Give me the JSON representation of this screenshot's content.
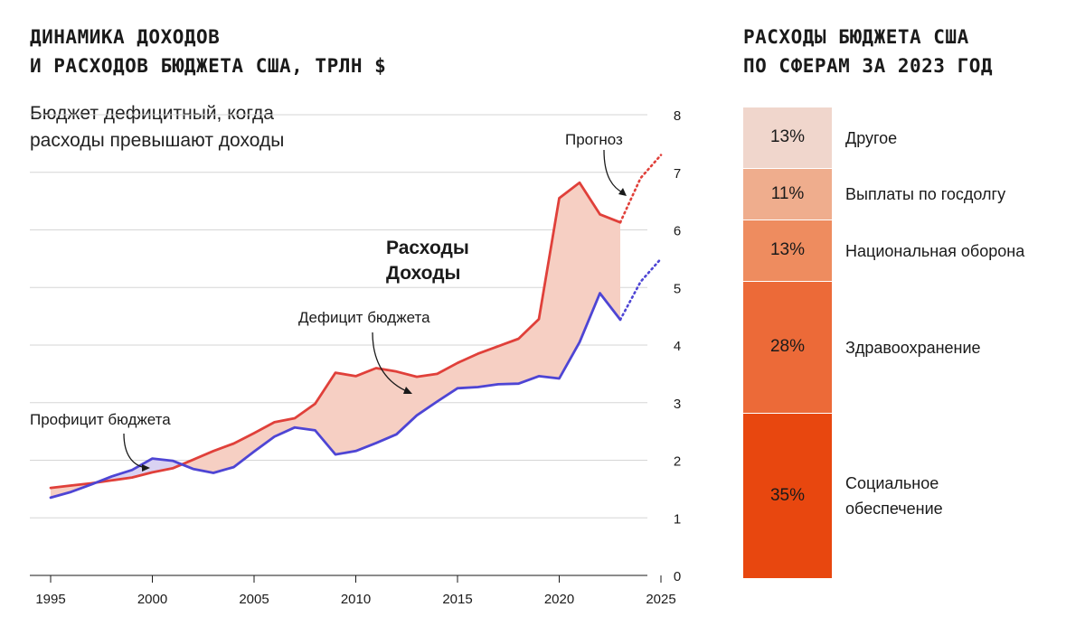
{
  "left_chart": {
    "title_line1": "ДИНАМИКА ДОХОДОВ",
    "title_line2": "И РАСХОДОВ БЮДЖЕТА США, ТРЛН $",
    "subtitle_line1": "Бюджет дефицитный, когда",
    "subtitle_line2": "расходы превышают доходы",
    "legend_expenses": "Расходы",
    "legend_revenues": "Доходы",
    "annotation_forecast": "Прогноз",
    "annotation_deficit": "Дефицит бюджета",
    "annotation_surplus": "Профицит бюджета",
    "colors": {
      "expenses": "#e0403a",
      "revenues": "#4e45d4",
      "deficit_fill": "#f6cfc3",
      "surplus_fill": "#d9d2f2",
      "grid": "#d6d6d6"
    }
  },
  "right_chart": {
    "title_line1": "РАСХОДЫ БЮДЖЕТА США",
    "title_line2": "ПО СФЕРАМ ЗА 2023 ГОД",
    "segments": [
      {
        "label": "Другое",
        "percent": "13%",
        "value": 13,
        "color": "#f0d6cc"
      },
      {
        "label": "Выплаты по госдолгу",
        "percent": "11%",
        "value": 11,
        "color": "#efad8d"
      },
      {
        "label": "Национальная оборона",
        "percent": "13%",
        "value": 13,
        "color": "#ee8c5f"
      },
      {
        "label": "Здравоохранение",
        "percent": "28%",
        "value": 28,
        "color": "#ec6a38"
      },
      {
        "label_line1": "Социальное",
        "label_line2": "обеспечение",
        "percent": "35%",
        "value": 35,
        "color": "#e8470f"
      }
    ]
  },
  "chart_data": {
    "type": "line",
    "title": "Динамика доходов и расходов бюджета США, трлн $",
    "xlabel": "",
    "ylabel": "трлн $",
    "xlim": [
      1995,
      2025
    ],
    "ylim": [
      0,
      8
    ],
    "x_ticks": [
      "1995",
      "2000",
      "2005",
      "2010",
      "2015",
      "2020",
      "2025"
    ],
    "y_ticks": [
      "0",
      "1",
      "2",
      "3",
      "4",
      "5",
      "6",
      "7",
      "8"
    ],
    "x": [
      1995,
      1996,
      1997,
      1998,
      1999,
      2000,
      2001,
      2002,
      2003,
      2004,
      2005,
      2006,
      2007,
      2008,
      2009,
      2010,
      2011,
      2012,
      2013,
      2014,
      2015,
      2016,
      2017,
      2018,
      2019,
      2020,
      2021,
      2022,
      2023
    ],
    "series": [
      {
        "name": "Расходы",
        "values": [
          1.52,
          1.56,
          1.6,
          1.65,
          1.7,
          1.79,
          1.86,
          2.01,
          2.16,
          2.29,
          2.47,
          2.66,
          2.73,
          2.98,
          3.52,
          3.46,
          3.6,
          3.54,
          3.45,
          3.5,
          3.69,
          3.85,
          3.98,
          4.11,
          4.45,
          6.55,
          6.82,
          6.27,
          6.13
        ]
      },
      {
        "name": "Доходы",
        "values": [
          1.35,
          1.45,
          1.58,
          1.72,
          1.83,
          2.03,
          1.99,
          1.85,
          1.78,
          1.88,
          2.15,
          2.41,
          2.57,
          2.52,
          2.1,
          2.16,
          2.3,
          2.45,
          2.78,
          3.02,
          3.25,
          3.27,
          3.32,
          3.33,
          3.46,
          3.42,
          4.05,
          4.9,
          4.44
        ]
      }
    ],
    "forecast": {
      "x": [
        2023,
        2024,
        2025
      ],
      "expenses": [
        6.13,
        6.9,
        7.3
      ],
      "revenues": [
        4.44,
        5.1,
        5.5
      ]
    }
  }
}
